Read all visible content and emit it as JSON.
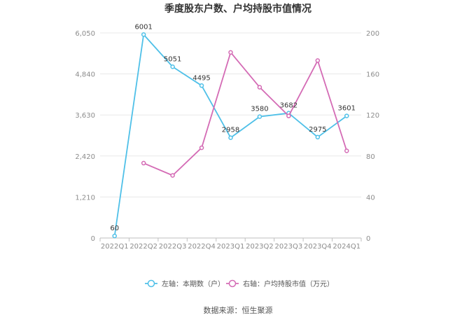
{
  "chart_data": {
    "type": "line",
    "title": "季度股东户数、户均持股市值情况",
    "categories": [
      "2022Q1",
      "2022Q2",
      "2022Q3",
      "2022Q4",
      "2023Q1",
      "2023Q2",
      "2023Q3",
      "2023Q4",
      "2024Q1"
    ],
    "left_axis": {
      "ticks": [
        "0",
        "1,210",
        "2,420",
        "3,630",
        "4,840",
        "6,050"
      ],
      "ylim": [
        0,
        6050
      ]
    },
    "right_axis": {
      "ticks": [
        "0",
        "40",
        "80",
        "120",
        "160",
        "200"
      ],
      "ylim": [
        0,
        200
      ]
    },
    "series": [
      {
        "name": "左轴：本期数（户）",
        "axis": "left",
        "color": "#4fc0e8",
        "values": [
          60,
          6001,
          5051,
          4495,
          2958,
          3580,
          3682,
          2975,
          3601
        ],
        "labels": [
          "60",
          "6001",
          "5051",
          "4495",
          "2958",
          "3580",
          "3682",
          "2975",
          "3601"
        ]
      },
      {
        "name": "右轴：户均持股市值（万元）",
        "axis": "right",
        "color": "#d46bb5",
        "values": [
          null,
          73,
          61,
          88,
          181,
          147,
          119,
          173,
          85
        ]
      }
    ],
    "grid": true,
    "legend_position": "bottom"
  },
  "source": "数据来源：恒生聚源"
}
